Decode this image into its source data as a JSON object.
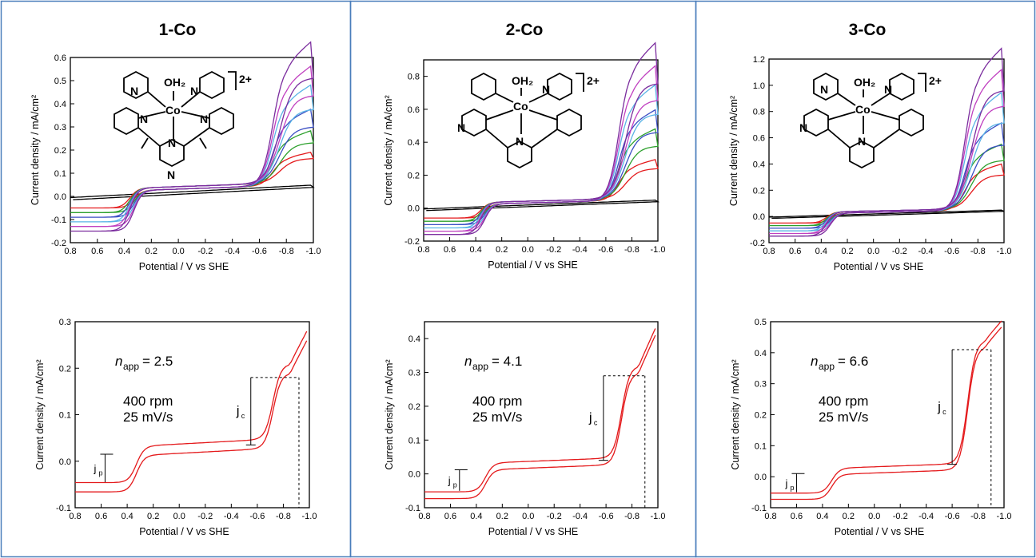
{
  "chart_data": [
    {
      "type": "line",
      "title": "1-Co",
      "xlabel": "Potential  /  V vs SHE",
      "ylabel": "Current density  /  mA/cm²",
      "xlim": [
        0.8,
        -1.0
      ],
      "ylim": [
        -0.2,
        0.6
      ],
      "x_ticks": [
        "0.8",
        "0.6",
        "0.4",
        "0.2",
        "0.0",
        "-0.2",
        "-0.4",
        "-0.6",
        "-0.8",
        "-1.0"
      ],
      "y_ticks": [
        "-0.2",
        "-0.1",
        "0.0",
        "0.1",
        "0.2",
        "0.3",
        "0.4",
        "0.5",
        "0.6"
      ],
      "complex_charge": "2+",
      "complex_labels": [
        "OH₂",
        "Co",
        "N"
      ],
      "series_colors": [
        "#000000",
        "#e41a1c",
        "#2ca02c",
        "#3b4fc4",
        "#5ab4e6",
        "#c040c0",
        "#7b2d9e"
      ],
      "cv_params": {
        "plateau_max": [
          0.05,
          0.17,
          0.25,
          0.33,
          0.42,
          0.49,
          0.58
        ],
        "neg_limit": [
          -0.005,
          -0.05,
          -0.07,
          -0.09,
          -0.11,
          -0.13,
          -0.15
        ]
      }
    },
    {
      "type": "line",
      "title": "2-Co",
      "xlabel": "Potential  /  V vs SHE",
      "ylabel": "Current density  /  mA/cm²",
      "xlim": [
        0.8,
        -1.0
      ],
      "ylim": [
        -0.2,
        0.9
      ],
      "x_ticks": [
        "0.8",
        "0.6",
        "0.4",
        "0.2",
        "0.0",
        "-0.2",
        "-0.4",
        "-0.6",
        "-0.8",
        "-1.0"
      ],
      "y_ticks": [
        "-0.2",
        "0.0",
        "0.2",
        "0.4",
        "0.6",
        "0.8"
      ],
      "complex_charge": "2+",
      "complex_labels": [
        "OH₂",
        "Co",
        "N"
      ],
      "series_colors": [
        "#000000",
        "#e41a1c",
        "#2ca02c",
        "#3b4fc4",
        "#5ab4e6",
        "#c040c0",
        "#7b2d9e"
      ],
      "cv_params": {
        "plateau_max": [
          0.05,
          0.26,
          0.42,
          0.52,
          0.65,
          0.75,
          0.87
        ],
        "neg_limit": [
          -0.005,
          -0.06,
          -0.08,
          -0.1,
          -0.12,
          -0.14,
          -0.16
        ]
      }
    },
    {
      "type": "line",
      "title": "3-Co",
      "xlabel": "Potential  /  V vs SHE",
      "ylabel": "Current density  /  mA/cm²",
      "xlim": [
        0.8,
        -1.0
      ],
      "ylim": [
        -0.2,
        1.2
      ],
      "x_ticks": [
        "0.8",
        "0.6",
        "0.4",
        "0.2",
        "0.0",
        "-0.2",
        "-0.4",
        "-0.6",
        "-0.8",
        "-1.0"
      ],
      "y_ticks": [
        "-0.2",
        "0.0",
        "0.2",
        "0.4",
        "0.6",
        "0.8",
        "1.0",
        "1.2"
      ],
      "complex_charge": "2+",
      "complex_labels": [
        "OH₂",
        "Co",
        "N"
      ],
      "series_colors": [
        "#000000",
        "#e41a1c",
        "#2ca02c",
        "#3b4fc4",
        "#5ab4e6",
        "#c040c0",
        "#7b2d9e"
      ],
      "cv_params": {
        "plateau_max": [
          0.05,
          0.35,
          0.48,
          0.62,
          0.82,
          0.97,
          1.11
        ],
        "neg_limit": [
          -0.005,
          -0.05,
          -0.07,
          -0.09,
          -0.11,
          -0.13,
          -0.15
        ]
      }
    },
    {
      "type": "line",
      "title": "",
      "xlabel": "Potential  /  V vs SHE",
      "ylabel": "Current density  /  mA/cm²",
      "xlim": [
        0.8,
        -1.0
      ],
      "ylim": [
        -0.1,
        0.3
      ],
      "x_ticks": [
        "0.8",
        "0.6",
        "0.4",
        "0.2",
        "0.0",
        "-0.2",
        "-0.4",
        "-0.6",
        "-0.8",
        "-1.0"
      ],
      "y_ticks": [
        "-0.1",
        "0.0",
        "0.1",
        "0.2",
        "0.3"
      ],
      "annotations": {
        "n_app": "n",
        "n_sub": "app",
        "n_value": "= 2.5",
        "rpm": "400 rpm",
        "scan_rate": "25 mV/s",
        "jc": "j",
        "jc_sub": "c",
        "jp": "j",
        "jp_sub": "p"
      },
      "rde_params": {
        "jc_top": 0.18,
        "jc_bottom": 0.035,
        "jc_x": -0.55,
        "jc_end_x": -0.92,
        "jp_top": 0.015,
        "jp_bottom": -0.045,
        "jp_x": 0.57,
        "low": -0.058,
        "plat": 0.02,
        "end": 0.258
      },
      "series": [
        {
          "color": "#e41a1c"
        }
      ]
    },
    {
      "type": "line",
      "title": "",
      "xlabel": "Potential  /  V vs SHE",
      "ylabel": "Current density  /  mA/cm²",
      "xlim": [
        0.8,
        -1.0
      ],
      "ylim": [
        -0.1,
        0.45
      ],
      "x_ticks": [
        "0.8",
        "0.6",
        "0.4",
        "0.2",
        "0.0",
        "-0.2",
        "-0.4",
        "-0.6",
        "-0.8",
        "-1.0"
      ],
      "y_ticks": [
        "-0.1",
        "0.0",
        "0.1",
        "0.2",
        "0.3",
        "0.4"
      ],
      "annotations": {
        "n_app": "n",
        "n_sub": "app",
        "n_value": "= 4.1",
        "rpm": "400 rpm",
        "scan_rate": "25 mV/s",
        "jc": "j",
        "jc_sub": "c",
        "jp": "j",
        "jp_sub": "p"
      },
      "rde_params": {
        "jc_top": 0.29,
        "jc_bottom": 0.04,
        "jc_x": -0.58,
        "jc_end_x": -0.9,
        "jp_top": 0.012,
        "jp_bottom": -0.05,
        "jp_x": 0.53,
        "low": -0.065,
        "plat": 0.02,
        "end": 0.415
      },
      "series": [
        {
          "color": "#e41a1c"
        }
      ]
    },
    {
      "type": "line",
      "title": "",
      "xlabel": "Potential  /  V vs SHE",
      "ylabel": "Current density  /  mA/cm²",
      "xlim": [
        0.8,
        -1.0
      ],
      "ylim": [
        -0.1,
        0.5
      ],
      "x_ticks": [
        "0.8",
        "0.6",
        "0.4",
        "0.2",
        "0.0",
        "-0.2",
        "-0.4",
        "-0.6",
        "-0.8",
        "-1.0"
      ],
      "y_ticks": [
        "-0.1",
        "0.0",
        "0.1",
        "0.2",
        "0.3",
        "0.4",
        "0.5"
      ],
      "annotations": {
        "n_app": "n",
        "n_sub": "app",
        "n_value": "= 6.6",
        "rpm": "400 rpm",
        "scan_rate": "25 mV/s",
        "jc": "j",
        "jc_sub": "c",
        "jp": "j",
        "jp_sub": "p"
      },
      "rde_params": {
        "jc_top": 0.41,
        "jc_bottom": 0.04,
        "jc_x": -0.6,
        "jc_end_x": -0.9,
        "jp_top": 0.01,
        "jp_bottom": -0.05,
        "jp_x": 0.6,
        "low": -0.065,
        "plat": 0.015,
        "end": 0.48
      },
      "series": [
        {
          "color": "#e41a1c"
        }
      ]
    }
  ]
}
